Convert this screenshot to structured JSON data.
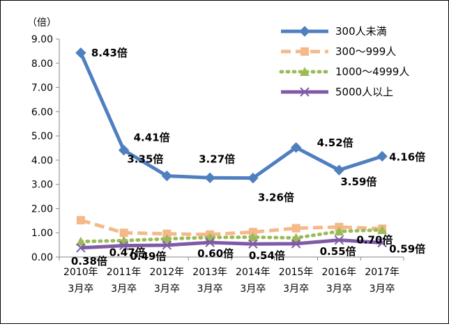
{
  "chart_data": {
    "type": "line",
    "ylabel": "（倍）",
    "ylim": [
      0,
      9
    ],
    "y_ticks": [
      "0.00",
      "1.00",
      "2.00",
      "3.00",
      "4.00",
      "5.00",
      "6.00",
      "7.00",
      "8.00",
      "9.00"
    ],
    "categories_line1": [
      "2010年",
      "2011年",
      "2012年",
      "2013年",
      "2014年",
      "2015年",
      "2016年",
      "2017年"
    ],
    "categories_line2": [
      "3月卒",
      "3月卒",
      "3月卒",
      "3月卒",
      "3月卒",
      "3月卒",
      "3月卒",
      "3月卒"
    ],
    "grid": false,
    "legend_position": "top-right",
    "series": [
      {
        "name": "300人未満",
        "values": [
          8.43,
          4.41,
          3.35,
          3.27,
          3.26,
          4.52,
          3.59,
          4.16
        ],
        "labels": [
          "8.43倍",
          "4.41倍",
          "3.35倍",
          "3.27倍",
          "3.26倍",
          "4.52倍",
          "3.59倍",
          "4.16倍"
        ],
        "color": "#4F7FBF",
        "marker": "diamond",
        "dash": "none"
      },
      {
        "name": "300～999人",
        "values": [
          1.52,
          1.0,
          0.96,
          0.93,
          1.03,
          1.19,
          1.24,
          1.17
        ],
        "color": "#F5B989",
        "marker": "square",
        "dash": "dashed"
      },
      {
        "name": "1000～4999人",
        "values": [
          0.64,
          0.68,
          0.75,
          0.81,
          0.82,
          0.79,
          1.06,
          1.12
        ],
        "color": "#9BBB59",
        "marker": "triangle",
        "dash": "dotted"
      },
      {
        "name": "5000人以上",
        "values": [
          0.38,
          0.47,
          0.49,
          0.6,
          0.54,
          0.55,
          0.7,
          0.59
        ],
        "labels": [
          "0.38倍",
          "0.47倍",
          "0.49倍",
          "0.60倍",
          "0.54倍",
          "0.55倍",
          "0.70倍",
          "0.59倍"
        ],
        "color": "#7F5BA6",
        "marker": "x",
        "dash": "none"
      }
    ]
  }
}
